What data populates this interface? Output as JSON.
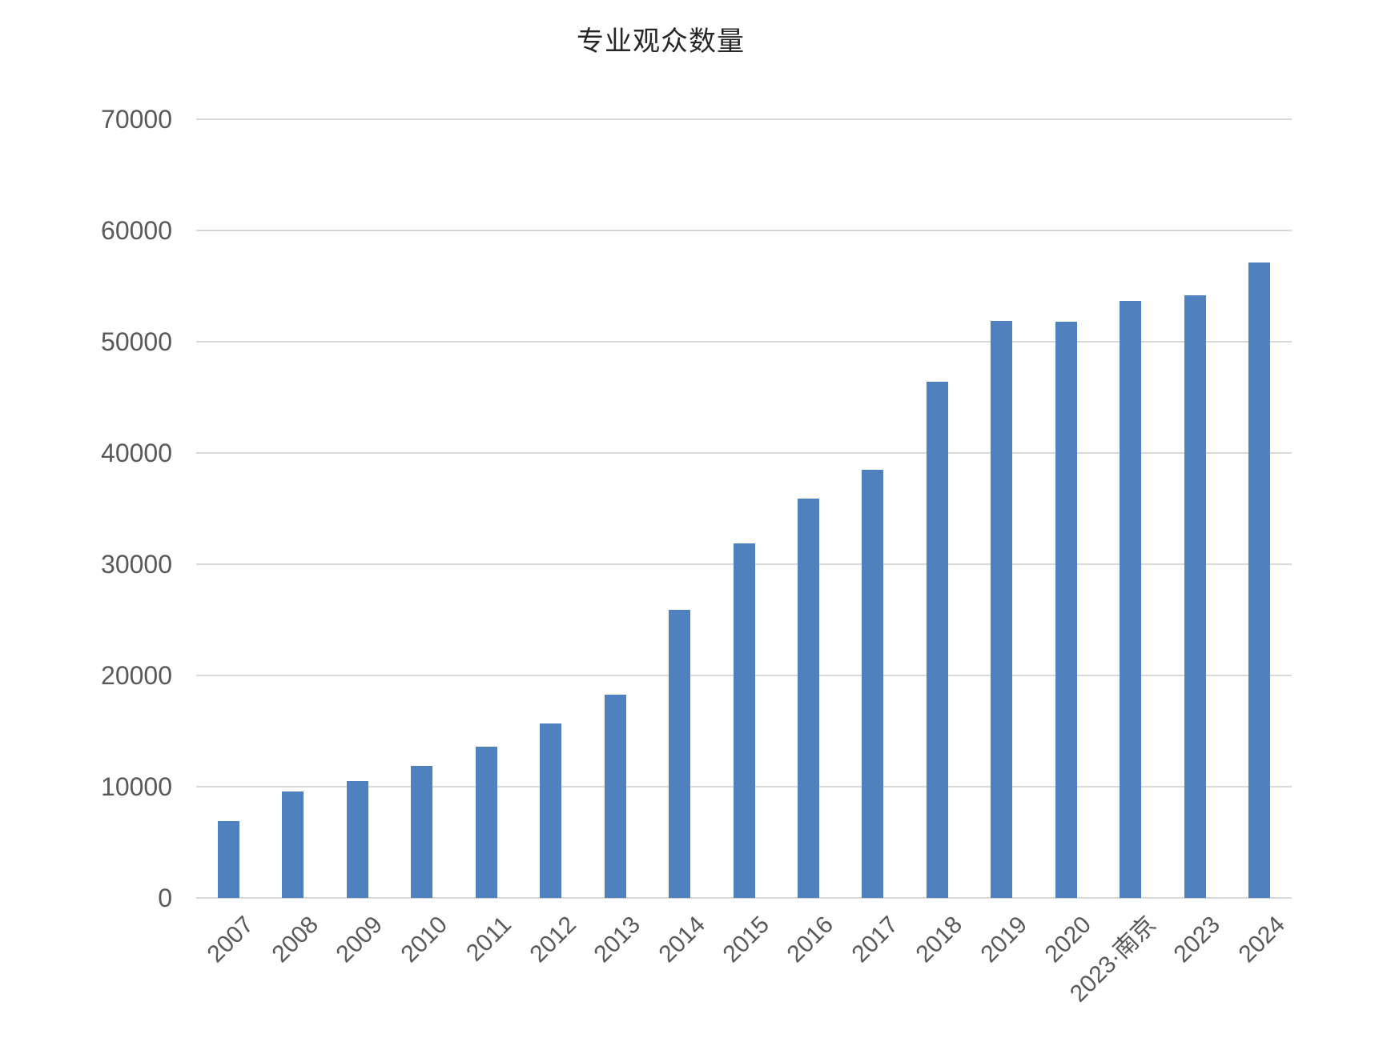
{
  "chart_data": {
    "type": "bar",
    "title": "专业观众数量",
    "categories": [
      "2007",
      "2008",
      "2009",
      "2010",
      "2011",
      "2012",
      "2013",
      "2014",
      "2015",
      "2016",
      "2017",
      "2018",
      "2019",
      "2020",
      "2023·南京",
      "2023",
      "2024"
    ],
    "values": [
      6900,
      9550,
      10500,
      11900,
      13600,
      15700,
      18300,
      25900,
      31900,
      35900,
      38500,
      46400,
      51900,
      51800,
      53700,
      54200,
      57100
    ],
    "xlabel": "",
    "ylabel": "",
    "ylim": [
      0,
      70000
    ],
    "ytick_step": 10000,
    "yticks": [
      "70000",
      "60000",
      "50000",
      "40000",
      "30000",
      "20000",
      "10000",
      "0"
    ],
    "x_label_rotation": -45,
    "grid": true,
    "legend": false,
    "colors": {
      "bar": "#4e81bd",
      "gridline": "#d9d9d9",
      "axis_text": "#595959",
      "title_text": "#262626",
      "background": "#ffffff"
    }
  }
}
